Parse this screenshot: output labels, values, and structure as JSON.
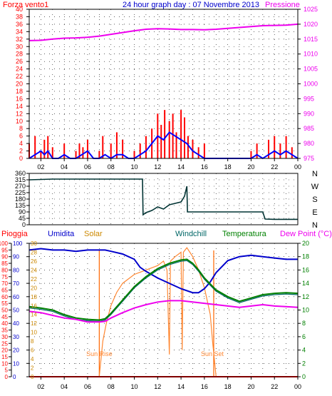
{
  "header": {
    "left_label": "Forza vento1",
    "title": "24 hour graph day : 07 Novembre 2013",
    "right_label": "Pressione"
  },
  "colors": {
    "wind_gust": "#ff0000",
    "wind_speed": "#0000ff",
    "pressure": "#ee00ee",
    "direction": "#003333",
    "rain": "#ff0000",
    "humidity": "#0000cc",
    "solar": "#ff8833",
    "windchill": "#006666",
    "temperature": "#008000",
    "dew_point": "#ee00ee",
    "sun_marker": "#ff6600",
    "grid": "#000000"
  },
  "chart_data": [
    {
      "type": "line",
      "name_left": "Forza vento1",
      "name_right": "Pressione",
      "x_ticks": [
        "02",
        "04",
        "06",
        "08",
        "10",
        "12",
        "14",
        "16",
        "18",
        "20",
        "22",
        "00"
      ],
      "xlim": [
        1,
        24
      ],
      "y_left_ticks": [
        "0",
        "2",
        "4",
        "6",
        "8",
        "10",
        "12",
        "14",
        "16",
        "18",
        "20",
        "22",
        "24",
        "26",
        "28",
        "30",
        "32",
        "34",
        "36",
        "38",
        "40"
      ],
      "ylim_left": [
        0,
        40
      ],
      "y_right_ticks": [
        "975",
        "980",
        "985",
        "990",
        "995",
        "1000",
        "1005",
        "1010",
        "1015",
        "1020",
        "1025"
      ],
      "ylim_right": [
        975,
        1025
      ],
      "series": [
        {
          "key": "gust",
          "axis": "left",
          "style": "bars",
          "x": [
            1.0,
            1.5,
            2.0,
            2.3,
            2.6,
            3.0,
            3.5,
            4.0,
            4.5,
            5.0,
            5.3,
            5.6,
            6.0,
            6.5,
            7.0,
            7.3,
            7.6,
            8.0,
            8.5,
            9.0,
            9.5,
            10.0,
            10.5,
            11.0,
            11.5,
            12.0,
            12.3,
            12.6,
            13.0,
            13.3,
            13.6,
            14.0,
            14.3,
            14.6,
            15.0,
            15.5,
            16.0,
            17.0,
            18.0,
            19.0,
            20.0,
            20.5,
            21.0,
            21.5,
            22.0,
            22.5,
            23.0,
            23.5,
            24.0
          ],
          "y": [
            4,
            6,
            2,
            5,
            6,
            3,
            0,
            4,
            0,
            2,
            4,
            3,
            5,
            0,
            2,
            6,
            0,
            4,
            7,
            5,
            0,
            2,
            4,
            6,
            8,
            12,
            9,
            13,
            10,
            12,
            7,
            13,
            11,
            6,
            5,
            3,
            4,
            0,
            0,
            0,
            2,
            4,
            0,
            5,
            6,
            4,
            6,
            3,
            0
          ]
        },
        {
          "key": "speed",
          "axis": "left",
          "style": "line",
          "x": [
            1.0,
            1.5,
            2.0,
            2.3,
            2.6,
            3.0,
            3.5,
            4.0,
            4.5,
            5.0,
            5.5,
            6.0,
            6.5,
            7.0,
            7.5,
            8.0,
            8.5,
            9.0,
            9.5,
            10.0,
            10.5,
            11.0,
            11.5,
            12.0,
            12.5,
            13.0,
            13.5,
            14.0,
            14.5,
            15.0,
            15.5,
            16.0,
            17.0,
            18.0,
            19.0,
            20.0,
            20.5,
            21.0,
            21.5,
            22.0,
            22.5,
            23.0,
            23.5,
            24.0
          ],
          "y": [
            0,
            1,
            2,
            1,
            2,
            0,
            0,
            1,
            0,
            0,
            1,
            2,
            0,
            0,
            1,
            0,
            1,
            1,
            0,
            0,
            1,
            2,
            4,
            6,
            5,
            7,
            6,
            5,
            4,
            2,
            1,
            0,
            0,
            0,
            0,
            0,
            1,
            0,
            1,
            2,
            1,
            2,
            1,
            0
          ]
        },
        {
          "key": "pressure",
          "axis": "right",
          "style": "line",
          "x": [
            1,
            2,
            3,
            4,
            5,
            6,
            7,
            8,
            9,
            10,
            11,
            12,
            13,
            14,
            15,
            16,
            17,
            18,
            19,
            20,
            21,
            22,
            23,
            24
          ],
          "y": [
            1014.5,
            1014.6,
            1015.0,
            1015.3,
            1015.4,
            1015.6,
            1016.0,
            1016.6,
            1017.2,
            1017.8,
            1018.3,
            1018.5,
            1018.4,
            1018.2,
            1018.2,
            1018.1,
            1018.3,
            1018.6,
            1018.9,
            1019.2,
            1019.5,
            1019.6,
            1019.7,
            1020.0
          ]
        }
      ]
    },
    {
      "type": "line",
      "name": "Direzione",
      "y_ticks": [
        "0",
        "45",
        "90",
        "135",
        "180",
        "225",
        "270",
        "315",
        "360"
      ],
      "ylim": [
        0,
        360
      ],
      "right_labels": [
        "N",
        "W",
        "S",
        "E",
        "N"
      ],
      "x": [
        1,
        3,
        5,
        7,
        8,
        9,
        10,
        10.7,
        10.75,
        11.0,
        11.5,
        12.0,
        12.5,
        13.0,
        13.5,
        14.0,
        14.3,
        14.5,
        14.55,
        15.0,
        16.0,
        18.0,
        20.0,
        21.0,
        21.2,
        22.0,
        23.0,
        24.0
      ],
      "y": [
        315,
        320,
        320,
        320,
        320,
        320,
        320,
        320,
        70,
        85,
        100,
        125,
        110,
        140,
        150,
        160,
        200,
        270,
        90,
        90,
        90,
        90,
        90,
        90,
        40,
        38,
        38,
        38
      ]
    },
    {
      "type": "line",
      "labels": [
        "Pioggia",
        "Umidita",
        "Solar",
        "Windchill",
        "Temperatura",
        "Dew Point (°C)"
      ],
      "x_ticks": [
        "02",
        "04",
        "06",
        "08",
        "10",
        "12",
        "14",
        "16",
        "18",
        "20",
        "22",
        "00"
      ],
      "y_left_outer_ticks": [
        "0",
        "5",
        "10",
        "15",
        "20",
        "25",
        "30",
        "35",
        "40",
        "45",
        "50",
        "55",
        "60",
        "65",
        "70",
        "75",
        "80",
        "85",
        "90",
        "95",
        "100"
      ],
      "ylim_rain": [
        0,
        100
      ],
      "y_left_inner_ticks": [
        "0",
        "10",
        "20",
        "30",
        "40",
        "50",
        "60",
        "70",
        "80",
        "90",
        "100"
      ],
      "ylim_humidity": [
        0,
        100
      ],
      "y_solar_ticks": [
        "0",
        "2",
        "4",
        "6",
        "8",
        "10",
        "12",
        "14",
        "16",
        "18",
        "20",
        "22",
        "24",
        "26",
        "28",
        "30"
      ],
      "ylim_solar": [
        0,
        30
      ],
      "y_right_ticks": [
        "0",
        "2",
        "4",
        "6",
        "8",
        "10",
        "12",
        "14",
        "16",
        "18",
        "20"
      ],
      "ylim_temp": [
        0,
        20
      ],
      "annotations": [
        "Sun Rise",
        "Sun Set"
      ],
      "sun_rise_x": 7.0,
      "sun_set_x": 16.8,
      "series": [
        {
          "key": "humidity",
          "x": [
            1,
            2,
            3,
            4,
            5,
            6,
            7,
            7.5,
            8,
            9,
            10,
            10.5,
            11,
            12,
            13,
            14,
            15,
            15.5,
            16,
            16.5,
            17,
            18,
            19,
            20,
            21,
            22,
            23,
            24
          ],
          "y": [
            95,
            96,
            95,
            95,
            94,
            95,
            95,
            95,
            94,
            92,
            88,
            82,
            79,
            74,
            70,
            66,
            63,
            63,
            66,
            71,
            78,
            87,
            90,
            91,
            90,
            89,
            88,
            88
          ]
        },
        {
          "key": "solar",
          "x": [
            1,
            6,
            7,
            7.3,
            7.6,
            8,
            8.5,
            9,
            10,
            11,
            12,
            12.5,
            12.8,
            13.0,
            13.1,
            13.5,
            14,
            14.1,
            14.2,
            14.5,
            15,
            15.5,
            16,
            16.5,
            16.7,
            17,
            18,
            24
          ],
          "y": [
            0,
            0,
            0,
            8,
            12,
            16,
            19,
            21,
            23,
            24,
            25,
            26,
            24,
            5,
            26,
            27,
            28,
            6,
            28,
            29,
            27,
            24,
            20,
            14,
            8,
            0,
            0,
            0
          ]
        },
        {
          "key": "temperature",
          "x": [
            1,
            2,
            3,
            4,
            5,
            6,
            7,
            7.5,
            8,
            9,
            10,
            11,
            12,
            13,
            14,
            14.5,
            15,
            15.5,
            16,
            17,
            18,
            19,
            20,
            21,
            22,
            23,
            24
          ],
          "y": [
            10.5,
            10.3,
            10.0,
            9.3,
            8.8,
            8.6,
            8.5,
            8.7,
            9.5,
            11.5,
            13.5,
            15.0,
            16.2,
            17.0,
            17.5,
            17.6,
            17.0,
            16.0,
            14.8,
            13.0,
            12.0,
            11.3,
            11.8,
            12.3,
            12.5,
            12.6,
            12.5
          ]
        },
        {
          "key": "windchill",
          "x": [
            1,
            2,
            3,
            4,
            5,
            6,
            7,
            7.5,
            8,
            9,
            10,
            11,
            12,
            13,
            14,
            14.5,
            15,
            15.5,
            16,
            17,
            18,
            19,
            20,
            21,
            22,
            23,
            24
          ],
          "y": [
            10.3,
            10.1,
            9.8,
            9.1,
            8.6,
            8.4,
            8.3,
            8.5,
            9.3,
            11.3,
            13.3,
            14.8,
            16.0,
            16.8,
            17.3,
            17.4,
            16.8,
            15.8,
            14.6,
            12.8,
            11.8,
            11.1,
            11.6,
            12.1,
            12.3,
            12.4,
            12.3
          ]
        },
        {
          "key": "dewpoint",
          "x": [
            1,
            2,
            3,
            4,
            5,
            6,
            7,
            7.5,
            8,
            9,
            10,
            11,
            12,
            13,
            14,
            15,
            16,
            17,
            18,
            19,
            20,
            21,
            22,
            23,
            24
          ],
          "y": [
            9.8,
            9.6,
            9.2,
            8.8,
            8.6,
            8.2,
            8.2,
            8.3,
            8.8,
            9.6,
            10.3,
            10.8,
            11.2,
            11.4,
            11.4,
            11.2,
            11.0,
            10.8,
            10.6,
            10.4,
            10.6,
            10.8,
            10.6,
            10.5,
            10.4
          ]
        },
        {
          "key": "rain",
          "x": [
            1,
            24
          ],
          "y": [
            0,
            0
          ]
        }
      ]
    }
  ]
}
